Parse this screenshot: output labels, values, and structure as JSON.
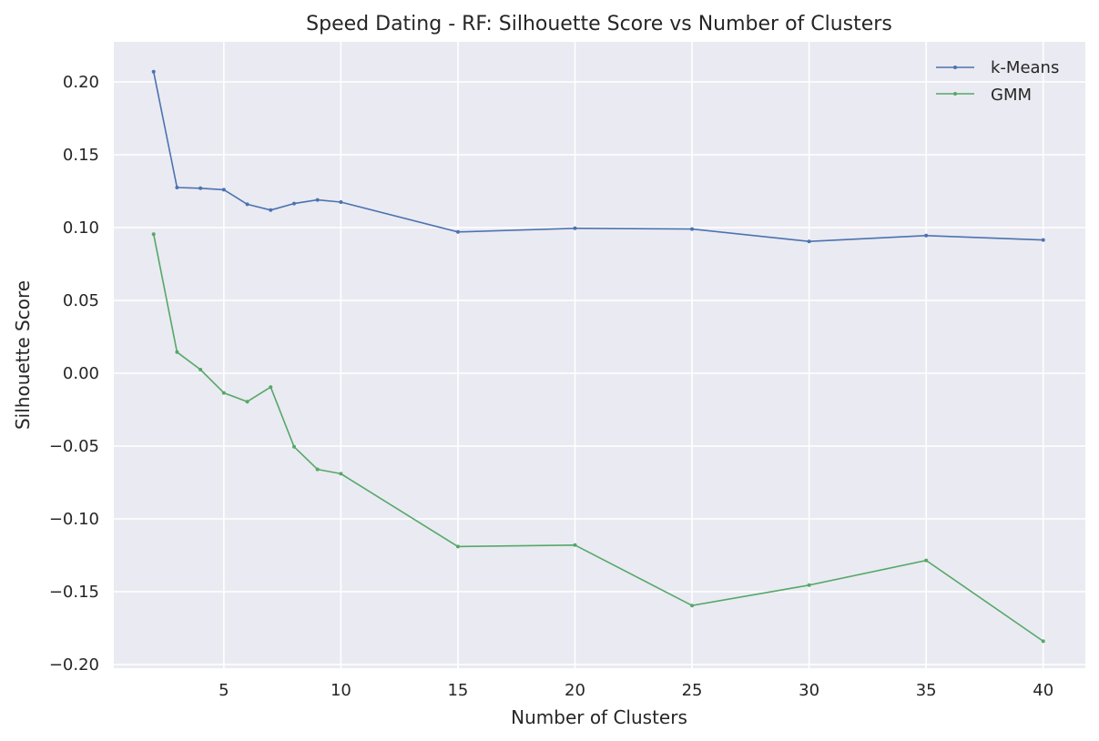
{
  "chart_data": {
    "type": "line",
    "title": "Speed Dating - RF: Silhouette Score vs Number of Clusters",
    "xlabel": "Number of Clusters",
    "ylabel": "Silhouette Score",
    "xlim": [
      0.3,
      41.8
    ],
    "ylim": [
      -0.2025,
      0.2275
    ],
    "xticks": [
      5,
      10,
      15,
      20,
      25,
      30,
      35,
      40
    ],
    "xtick_labels": [
      "5",
      "10",
      "15",
      "20",
      "25",
      "30",
      "35",
      "40"
    ],
    "yticks": [
      -0.2,
      -0.15,
      -0.1,
      -0.05,
      0.0,
      0.05,
      0.1,
      0.15,
      0.2
    ],
    "ytick_labels": [
      "−0.20",
      "−0.15",
      "−0.10",
      "−0.05",
      "0.00",
      "0.05",
      "0.10",
      "0.15",
      "0.20"
    ],
    "grid": true,
    "legend_position": "top-right",
    "x": [
      2,
      3,
      4,
      5,
      6,
      7,
      8,
      9,
      10,
      15,
      20,
      25,
      30,
      35,
      40
    ],
    "series": [
      {
        "name": "k-Means",
        "color": "#4c72b0",
        "values": [
          0.207,
          0.1275,
          0.127,
          0.126,
          0.116,
          0.112,
          0.1165,
          0.119,
          0.1175,
          0.097,
          0.0995,
          0.099,
          0.0905,
          0.0945,
          0.0915
        ]
      },
      {
        "name": "GMM",
        "color": "#55a868",
        "values": [
          0.0955,
          0.0145,
          0.0025,
          -0.0135,
          -0.0195,
          -0.0095,
          -0.0505,
          -0.066,
          -0.069,
          -0.119,
          -0.118,
          -0.1595,
          -0.1455,
          -0.1285,
          -0.184
        ]
      }
    ]
  }
}
